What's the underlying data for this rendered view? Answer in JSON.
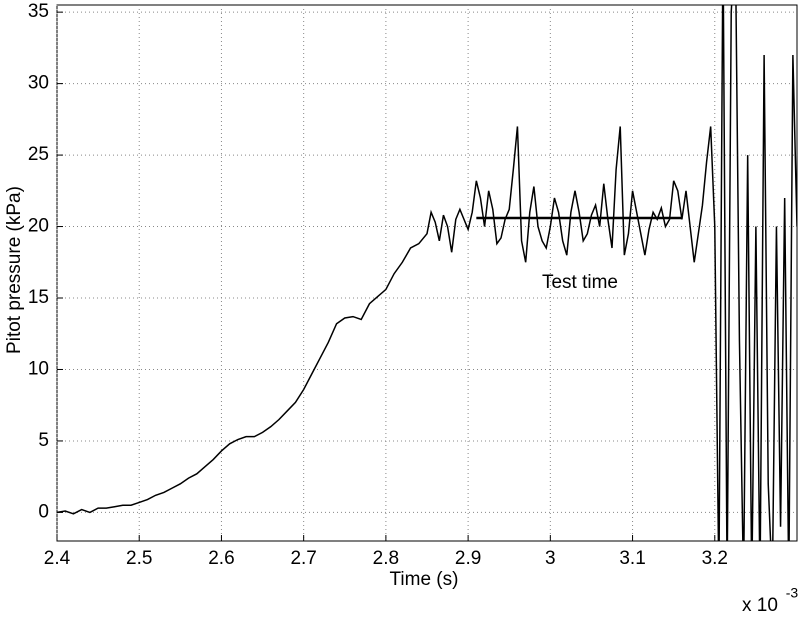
{
  "chart_data": {
    "type": "line",
    "x_label": "Time (s)",
    "y_label": "Pitot pressure (kPa)",
    "x_multiplier": {
      "base": "x 10",
      "exponent": "-3"
    },
    "color": "#000000",
    "grid": true,
    "xlim": [
      2.4,
      3.3
    ],
    "ylim": [
      -2,
      35.5
    ],
    "xticks": [
      2.4,
      2.5,
      2.6,
      2.7,
      2.8,
      2.9,
      3,
      3.1,
      3.2
    ],
    "yticks": [
      0,
      5,
      10,
      15,
      20,
      25,
      30,
      35
    ],
    "annotation": {
      "text": "Test time",
      "x": [
        2.91,
        3.16
      ],
      "y": 20.6
    },
    "x": [
      2.4,
      2.41,
      2.42,
      2.43,
      2.44,
      2.45,
      2.46,
      2.47,
      2.48,
      2.49,
      2.5,
      2.51,
      2.52,
      2.53,
      2.54,
      2.55,
      2.56,
      2.57,
      2.58,
      2.59,
      2.6,
      2.61,
      2.62,
      2.63,
      2.64,
      2.65,
      2.66,
      2.67,
      2.68,
      2.69,
      2.7,
      2.71,
      2.72,
      2.73,
      2.74,
      2.75,
      2.76,
      2.77,
      2.78,
      2.79,
      2.8,
      2.81,
      2.82,
      2.83,
      2.84,
      2.85,
      2.855,
      2.86,
      2.865,
      2.87,
      2.875,
      2.88,
      2.885,
      2.89,
      2.895,
      2.9,
      2.905,
      2.91,
      2.915,
      2.92,
      2.925,
      2.93,
      2.935,
      2.94,
      2.945,
      2.95,
      2.955,
      2.96,
      2.965,
      2.97,
      2.975,
      2.98,
      2.985,
      2.99,
      2.995,
      3.0,
      3.005,
      3.01,
      3.015,
      3.02,
      3.025,
      3.03,
      3.035,
      3.04,
      3.045,
      3.05,
      3.055,
      3.06,
      3.065,
      3.07,
      3.075,
      3.08,
      3.085,
      3.09,
      3.095,
      3.1,
      3.105,
      3.11,
      3.115,
      3.12,
      3.125,
      3.13,
      3.135,
      3.14,
      3.145,
      3.15,
      3.155,
      3.16,
      3.165,
      3.17,
      3.175,
      3.18,
      3.185,
      3.19,
      3.195,
      3.2,
      3.205,
      3.21,
      3.215,
      3.22,
      3.225,
      3.23,
      3.235,
      3.24,
      3.245,
      3.25,
      3.255,
      3.26,
      3.265,
      3.27,
      3.275,
      3.28,
      3.285,
      3.29,
      3.295,
      3.3
    ],
    "values": [
      0,
      0.1,
      -0.1,
      0.2,
      0,
      0.3,
      0.3,
      0.4,
      0.5,
      0.5,
      0.7,
      0.9,
      1.2,
      1.4,
      1.7,
      2.0,
      2.4,
      2.7,
      3.2,
      3.7,
      4.3,
      4.8,
      5.1,
      5.3,
      5.3,
      5.6,
      6.0,
      6.5,
      7.1,
      7.7,
      8.6,
      9.7,
      10.8,
      11.9,
      13.2,
      13.6,
      13.7,
      13.5,
      14.6,
      15.1,
      15.6,
      16.7,
      17.5,
      18.5,
      18.8,
      19.5,
      21.0,
      20.3,
      19.0,
      20.8,
      20.0,
      18.2,
      20.5,
      21.2,
      20.5,
      19.8,
      21.0,
      23.2,
      22.0,
      20.0,
      22.5,
      21.2,
      18.8,
      19.2,
      20.5,
      21.2,
      24.0,
      27.0,
      19.0,
      17.5,
      21.0,
      22.8,
      20.0,
      19.0,
      18.5,
      20.0,
      22.0,
      21.0,
      19.0,
      18.0,
      21.0,
      22.5,
      21.0,
      19.0,
      19.5,
      20.8,
      21.5,
      20.0,
      23.0,
      20.5,
      18.5,
      24.0,
      27.0,
      18.0,
      19.5,
      22.5,
      21.0,
      19.5,
      18.0,
      19.8,
      21.0,
      20.5,
      21.3,
      20.0,
      20.5,
      23.2,
      22.5,
      20.5,
      22.5,
      20.0,
      17.5,
      19.5,
      21.5,
      24.5,
      27.0,
      20.0,
      -5,
      40,
      -5,
      35,
      40,
      12,
      -5,
      25,
      -5,
      20,
      -5,
      32,
      2,
      -5,
      20,
      -1,
      22,
      -5,
      32,
      20
    ]
  }
}
